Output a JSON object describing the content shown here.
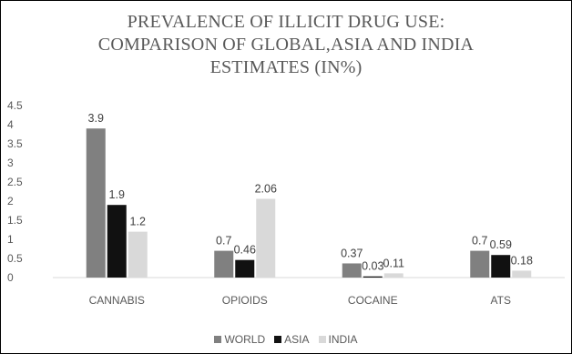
{
  "chart_data": {
    "type": "bar",
    "title_lines": [
      "PREVALENCE OF ILLICIT DRUG USE:",
      "COMPARISON OF GLOBAL,ASIA AND INDIA",
      "ESTIMATES (IN%)"
    ],
    "categories": [
      "CANNABIS",
      "OPIOIDS",
      "COCAINE",
      "ATS"
    ],
    "series": [
      {
        "name": "WORLD",
        "color": "#808080",
        "values": [
          3.9,
          0.7,
          0.37,
          0.7
        ],
        "labels": [
          "3.9",
          "0.7",
          "0.37",
          "0.7"
        ]
      },
      {
        "name": "ASIA",
        "color": "#111111",
        "values": [
          1.9,
          0.46,
          0.03,
          0.59
        ],
        "labels": [
          "1.9",
          "0.46",
          "0.03",
          "0.59"
        ]
      },
      {
        "name": "INDIA",
        "color": "#d9d9d9",
        "values": [
          1.2,
          2.06,
          0.11,
          0.18
        ],
        "labels": [
          "1.2",
          "2.06",
          "0.11",
          "0.18"
        ]
      }
    ],
    "yticks": [
      "0",
      "0.5",
      "1",
      "1.5",
      "2",
      "2.5",
      "3",
      "3.5",
      "4",
      "4.5"
    ],
    "ylim": [
      0,
      4.5
    ],
    "legend_position": "bottom",
    "grid": false
  }
}
